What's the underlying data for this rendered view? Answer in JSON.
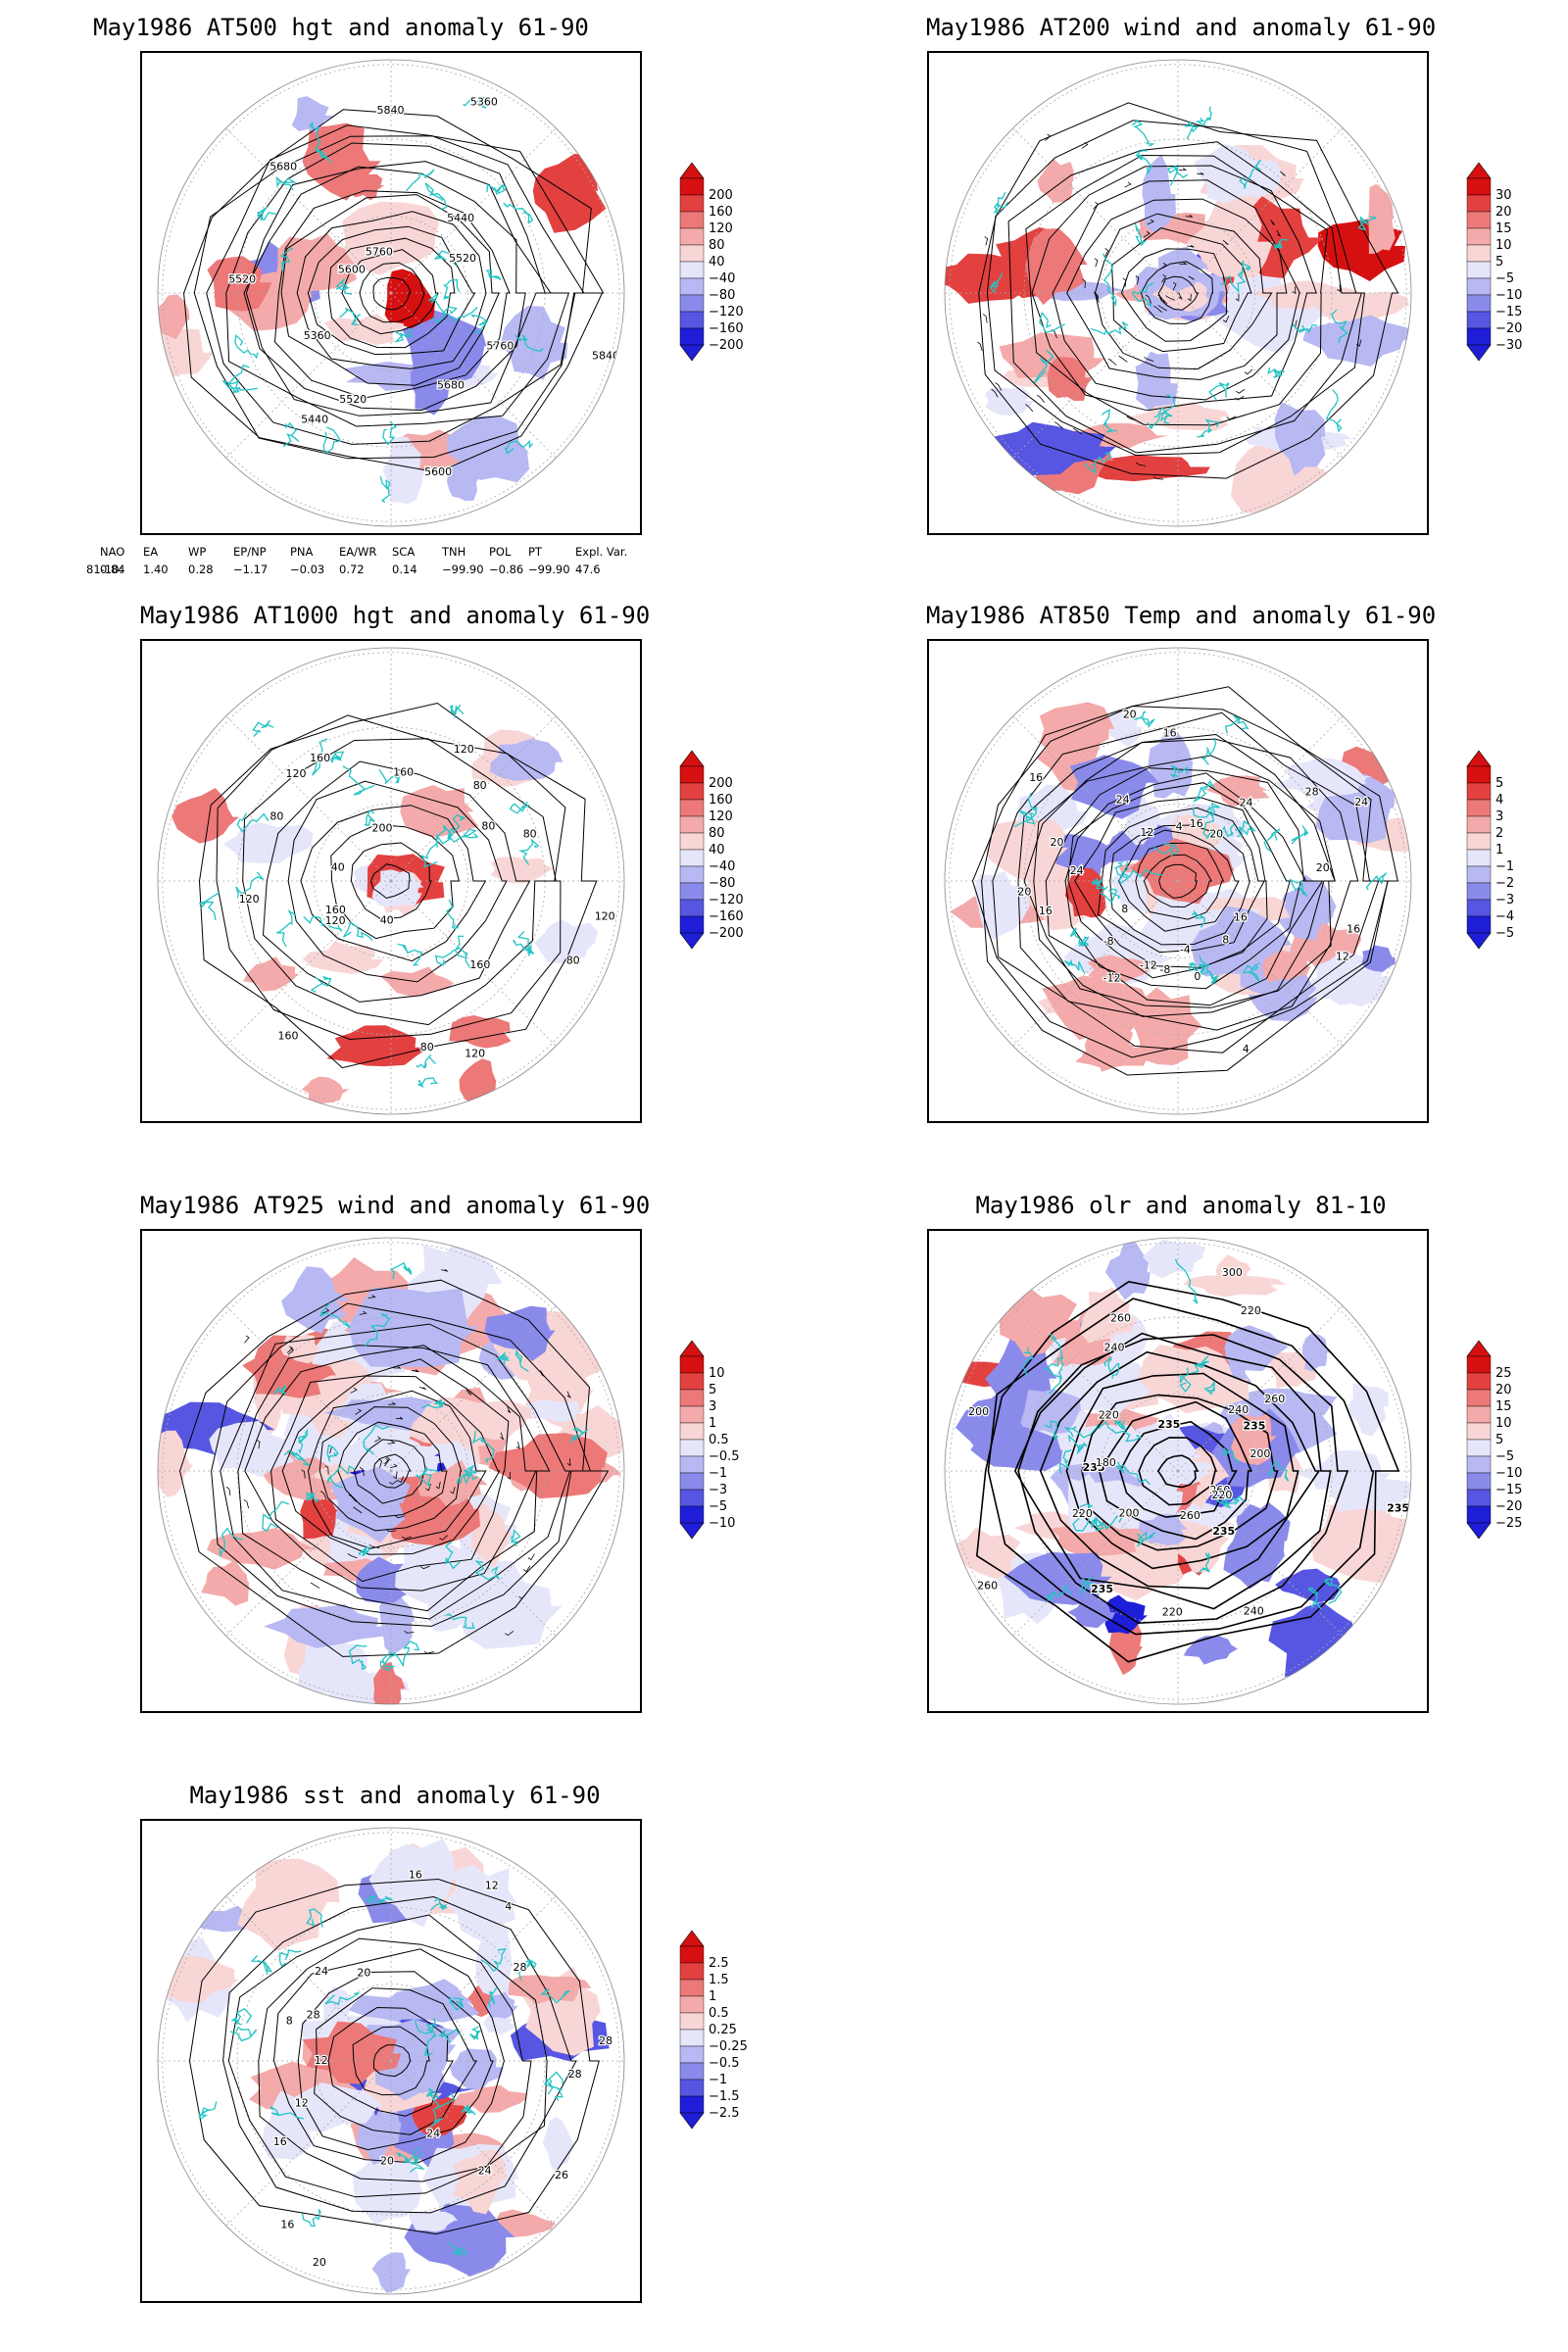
{
  "panels": [
    {
      "id": "p1",
      "title": "May1986 AT500 hgt and anomaly 61-90",
      "colorbar": [
        "200",
        "160",
        "120",
        "80",
        "40",
        "−40",
        "−80",
        "−120",
        "−160",
        "−200"
      ],
      "contour_labels": [
        "5840",
        "5760",
        "5680",
        "5600",
        "5520",
        "5440",
        "5360",
        "5520",
        "5600",
        "5680",
        "5760",
        "5840",
        "5360",
        "5440",
        "5520"
      ]
    },
    {
      "id": "p2",
      "title": "May1986 AT200 wind and anomaly 61-90",
      "colorbar": [
        "30",
        "20",
        "15",
        "10",
        "5",
        "−5",
        "−10",
        "−15",
        "−20",
        "−30"
      ],
      "contour_labels": []
    },
    {
      "id": "p3",
      "title": "May1986 AT1000 hgt and anomaly 61-90",
      "colorbar": [
        "200",
        "160",
        "120",
        "80",
        "40",
        "−40",
        "−80",
        "−120",
        "−160",
        "−200"
      ],
      "contour_labels": [
        "120",
        "80",
        "160",
        "120",
        "80",
        "40",
        "160",
        "120",
        "160",
        "120",
        "40",
        "80",
        "120",
        "160",
        "200",
        "160",
        "120",
        "80",
        "80",
        "80"
      ]
    },
    {
      "id": "p4",
      "title": "May1986 AT850 Temp and anomaly 61-90",
      "colorbar": [
        "5",
        "4",
        "3",
        "2",
        "1",
        "−1",
        "−2",
        "−3",
        "−4",
        "−5"
      ],
      "contour_labels": [
        "16",
        "12",
        "16",
        "8",
        "4",
        "0",
        "-4",
        "-8",
        "-12",
        "-12",
        "-8",
        "8",
        "16",
        "20",
        "24",
        "20",
        "16",
        "12",
        "24",
        "20",
        "16",
        "4",
        "16",
        "20",
        "24",
        "28",
        "24",
        "20"
      ]
    },
    {
      "id": "p5",
      "title": "May1986 AT925 wind and anomaly 61-90",
      "colorbar": [
        "10",
        "5",
        "3",
        "1",
        "0.5",
        "−0.5",
        "−1",
        "−3",
        "−5",
        "−10"
      ],
      "contour_labels": []
    },
    {
      "id": "p6",
      "title": "May1986 olr and anomaly 81-10",
      "colorbar": [
        "25",
        "20",
        "15",
        "10",
        "5",
        "−5",
        "−10",
        "−15",
        "−20",
        "−25"
      ],
      "contour_labels": [
        "235",
        "260",
        "220",
        "235",
        "240",
        "260",
        "220",
        "235",
        "200",
        "260",
        "220",
        "235",
        "180",
        "200",
        "220",
        "240",
        "260",
        "235",
        "300",
        "220",
        "240",
        "260",
        "235",
        "200"
      ]
    },
    {
      "id": "p7",
      "title": "May1986 sst and anomaly 61-90",
      "colorbar": [
        "2.5",
        "1.5",
        "1",
        "0.5",
        "0.25",
        "−0.25",
        "−0.5",
        "−1",
        "−1.5",
        "−2.5"
      ],
      "contour_labels": [
        "28",
        "26",
        "24",
        "24",
        "20",
        "20",
        "16",
        "16",
        "12",
        "12",
        "8",
        "28",
        "24",
        "20",
        "16",
        "12",
        "4",
        "28",
        "28"
      ]
    }
  ],
  "teleconnections": {
    "headers": [
      "NAO",
      "EA",
      "WP",
      "EP/NP",
      "PNA",
      "EA/WR",
      "SCA",
      "TNH",
      "POL",
      "PT",
      "Expl. Var."
    ],
    "row_label": "81-10:",
    "values": [
      "0.84",
      "1.40",
      "0.28",
      "−1.17",
      "−0.03",
      "0.72",
      "0.14",
      "−99.90",
      "−0.86",
      "−99.90",
      "47.6"
    ]
  },
  "colors": {
    "coast": "#22c4c4",
    "positive": [
      "#f9d6d6",
      "#f4aaaa",
      "#ec7878",
      "#e34040",
      "#d61010"
    ],
    "negative": [
      "#e6e6fb",
      "#b8b8f3",
      "#8a8aeb",
      "#5656e2",
      "#1e1ed8"
    ]
  }
}
